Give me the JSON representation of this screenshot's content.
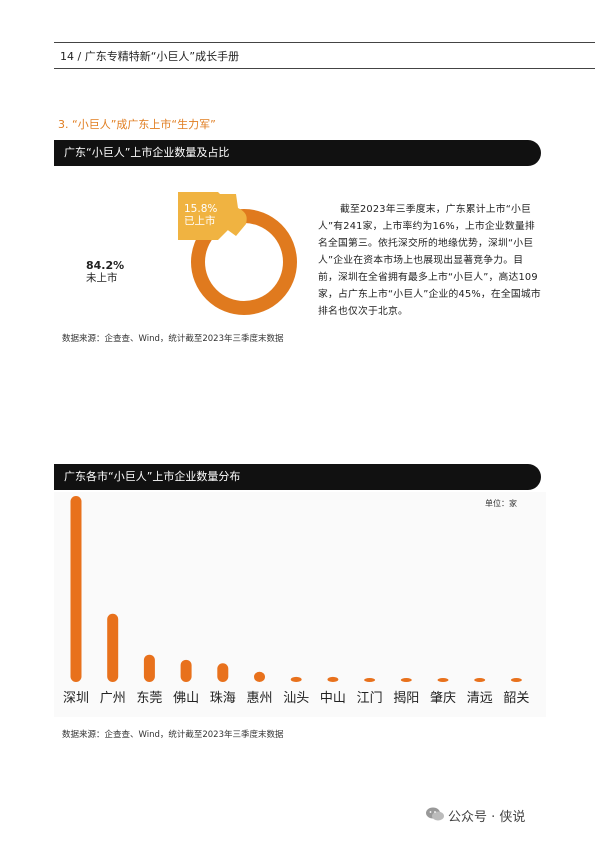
{
  "header": {
    "page_no": "14",
    "separator": "/",
    "title": "广东专精特新“小巨人”成长手册"
  },
  "section": {
    "title": "3. “小巨人”成广东上市“生力军”"
  },
  "band1": {
    "title": "广东“小巨人”上市企业数量及占比"
  },
  "donut": {
    "listed_pct": "15.8%",
    "listed_label": "已上市",
    "unlisted_pct": "84.2%",
    "unlisted_label": "未上市",
    "listed_value": 0.158,
    "colors": {
      "unlisted": "#e07a1e",
      "listed": "#f0b341"
    }
  },
  "source1": "数据来源：企查查、Wind，统计截至2023年三季度末数据",
  "paragraph": "截至2023年三季度末，广东累计上市“小巨人”有241家，上市率约为16%，上市企业数量排名全国第三。依托深交所的地缘优势，深圳“小巨人”企业在资本市场上也展现出显著竞争力。目前，深圳在全省拥有最多上市“小巨人”，高达109家，占广东上市“小巨人”企业的45%，在全国城市排名也仅次于北京。",
  "band2": {
    "title": "广东各市“小巨人”上市企业数量分布"
  },
  "unit": "单位：家",
  "chart_data": {
    "type": "bar",
    "categories": [
      "深圳",
      "广州",
      "东莞",
      "佛山",
      "珠海",
      "惠州",
      "汕头",
      "中山",
      "江门",
      "揭阳",
      "肇庆",
      "清远",
      "韶关"
    ],
    "values": [
      109,
      40,
      16,
      13,
      11,
      6,
      3,
      3,
      2,
      1,
      1,
      1,
      1
    ],
    "bar_color": "#e8711c"
  },
  "source2": "数据来源：企查查、Wind，统计截至2023年三季度末数据",
  "watermark": "公众号 · 侠说"
}
